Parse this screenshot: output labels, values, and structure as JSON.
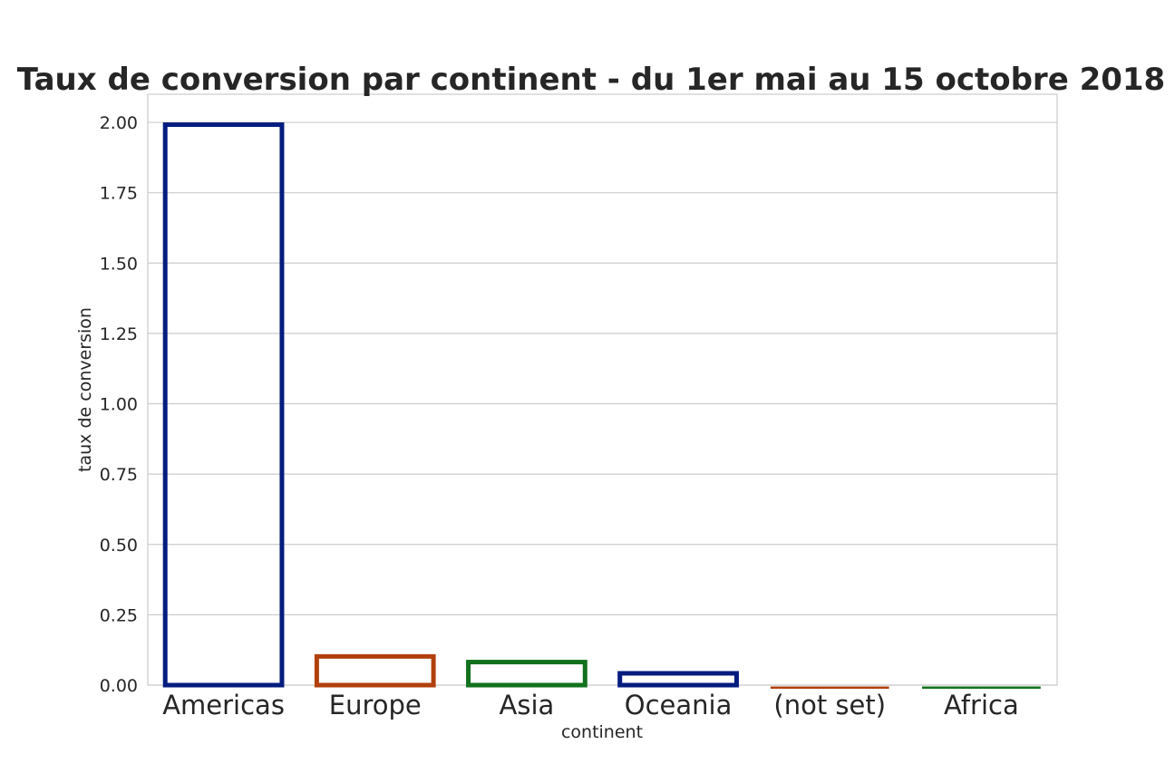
{
  "chart_data": {
    "type": "bar",
    "title": "Taux de conversion par continent - du 1er mai au 15 octobre 2018",
    "xlabel": "continent",
    "ylabel": "taux de conversion",
    "categories": [
      "Americas",
      "Europe",
      "Asia",
      "Oceania",
      "(not set)",
      "Africa"
    ],
    "values": [
      2.0,
      0.11,
      0.09,
      0.05,
      0.0,
      0.0
    ],
    "colors": [
      "#001c7f",
      "#b1400d",
      "#12711c",
      "#001c7f",
      "#b1400d",
      "#12711c"
    ],
    "ylim": [
      0,
      2.1
    ],
    "yticks": [
      "0.00",
      "0.25",
      "0.50",
      "0.75",
      "1.00",
      "1.25",
      "1.50",
      "1.75",
      "2.00"
    ],
    "grid": true,
    "bar_style": "outline"
  }
}
